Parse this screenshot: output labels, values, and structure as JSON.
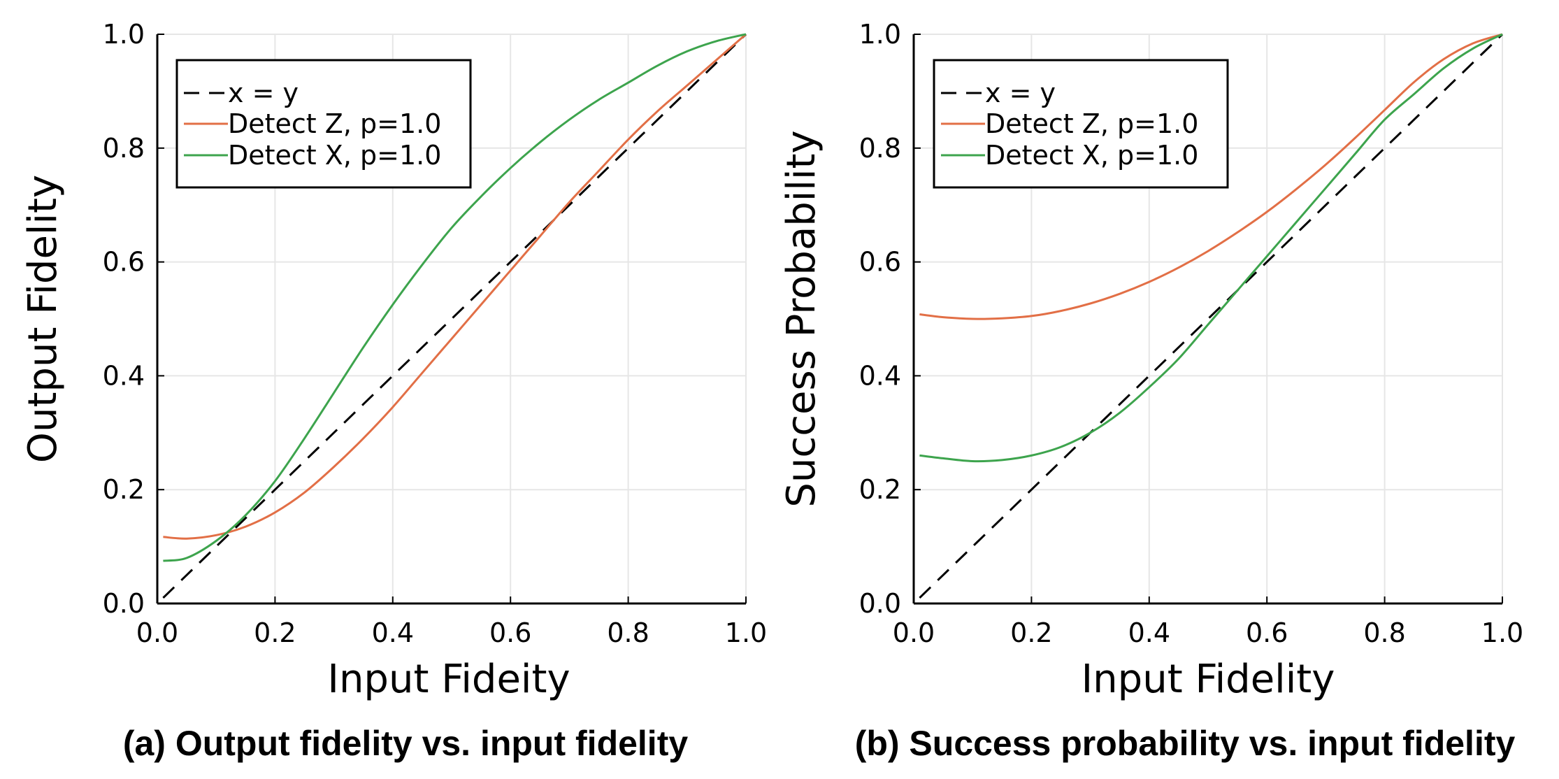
{
  "colors": {
    "xy": "#000000",
    "detect_z": "#e26f46",
    "detect_x": "#3da44d",
    "grid": "#e6e6e6"
  },
  "chart_data": [
    {
      "type": "line",
      "caption": "(a) Output fidelity vs. input fidelity",
      "title": "",
      "xlabel": "Input Fideity",
      "ylabel": "Output Fidelity",
      "xlim": [
        0.0,
        1.0
      ],
      "ylim": [
        0.0,
        1.0
      ],
      "xticks": [
        "0.0",
        "0.2",
        "0.4",
        "0.6",
        "0.8",
        "1.0"
      ],
      "yticks": [
        "0.0",
        "0.2",
        "0.4",
        "0.6",
        "0.8",
        "1.0"
      ],
      "grid": true,
      "legend_position": "top-left",
      "x": [
        0.01,
        0.05,
        0.1,
        0.15,
        0.2,
        0.25,
        0.3,
        0.35,
        0.4,
        0.45,
        0.5,
        0.55,
        0.6,
        0.65,
        0.7,
        0.75,
        0.8,
        0.85,
        0.9,
        0.95,
        1.0
      ],
      "series": [
        {
          "name": "x = y",
          "style": "dashed",
          "color": "#000000",
          "values": [
            0.01,
            0.05,
            0.1,
            0.15,
            0.2,
            0.25,
            0.3,
            0.35,
            0.4,
            0.45,
            0.5,
            0.55,
            0.6,
            0.65,
            0.7,
            0.75,
            0.8,
            0.85,
            0.9,
            0.95,
            1.0
          ]
        },
        {
          "name": "Detect Z, p=1.0",
          "style": "solid",
          "color": "#e26f46",
          "values": [
            0.117,
            0.114,
            0.12,
            0.135,
            0.16,
            0.195,
            0.24,
            0.29,
            0.345,
            0.405,
            0.465,
            0.525,
            0.585,
            0.645,
            0.705,
            0.76,
            0.815,
            0.865,
            0.91,
            0.955,
            1.0
          ]
        },
        {
          "name": "Detect X, p=1.0",
          "style": "solid",
          "color": "#3da44d",
          "values": [
            0.075,
            0.08,
            0.11,
            0.155,
            0.215,
            0.29,
            0.37,
            0.45,
            0.525,
            0.595,
            0.66,
            0.715,
            0.765,
            0.81,
            0.85,
            0.885,
            0.915,
            0.945,
            0.97,
            0.988,
            1.0
          ]
        }
      ]
    },
    {
      "type": "line",
      "caption": "(b) Success probability vs. input fidelity",
      "title": "",
      "xlabel": "Input Fidelity",
      "ylabel": "Success Probability",
      "xlim": [
        0.0,
        1.0
      ],
      "ylim": [
        0.0,
        1.0
      ],
      "xticks": [
        "0.0",
        "0.2",
        "0.4",
        "0.6",
        "0.8",
        "1.0"
      ],
      "yticks": [
        "0.0",
        "0.2",
        "0.4",
        "0.6",
        "0.8",
        "1.0"
      ],
      "grid": true,
      "legend_position": "top-left",
      "x": [
        0.01,
        0.05,
        0.1,
        0.15,
        0.2,
        0.25,
        0.3,
        0.35,
        0.4,
        0.45,
        0.5,
        0.55,
        0.6,
        0.65,
        0.7,
        0.75,
        0.8,
        0.85,
        0.9,
        0.95,
        1.0
      ],
      "series": [
        {
          "name": "x = y",
          "style": "dashed",
          "color": "#000000",
          "values": [
            0.01,
            0.05,
            0.1,
            0.15,
            0.2,
            0.25,
            0.3,
            0.35,
            0.4,
            0.45,
            0.5,
            0.55,
            0.6,
            0.65,
            0.7,
            0.75,
            0.8,
            0.85,
            0.9,
            0.95,
            1.0
          ]
        },
        {
          "name": "Detect Z, p=1.0",
          "style": "solid",
          "color": "#e26f46",
          "values": [
            0.508,
            0.503,
            0.5,
            0.501,
            0.505,
            0.514,
            0.527,
            0.544,
            0.565,
            0.59,
            0.619,
            0.652,
            0.688,
            0.728,
            0.771,
            0.818,
            0.867,
            0.916,
            0.956,
            0.984,
            1.0
          ]
        },
        {
          "name": "Detect X, p=1.0",
          "style": "solid",
          "color": "#3da44d",
          "values": [
            0.26,
            0.255,
            0.25,
            0.252,
            0.26,
            0.275,
            0.3,
            0.335,
            0.38,
            0.43,
            0.49,
            0.55,
            0.61,
            0.67,
            0.73,
            0.79,
            0.85,
            0.895,
            0.94,
            0.975,
            1.0
          ]
        }
      ]
    }
  ]
}
